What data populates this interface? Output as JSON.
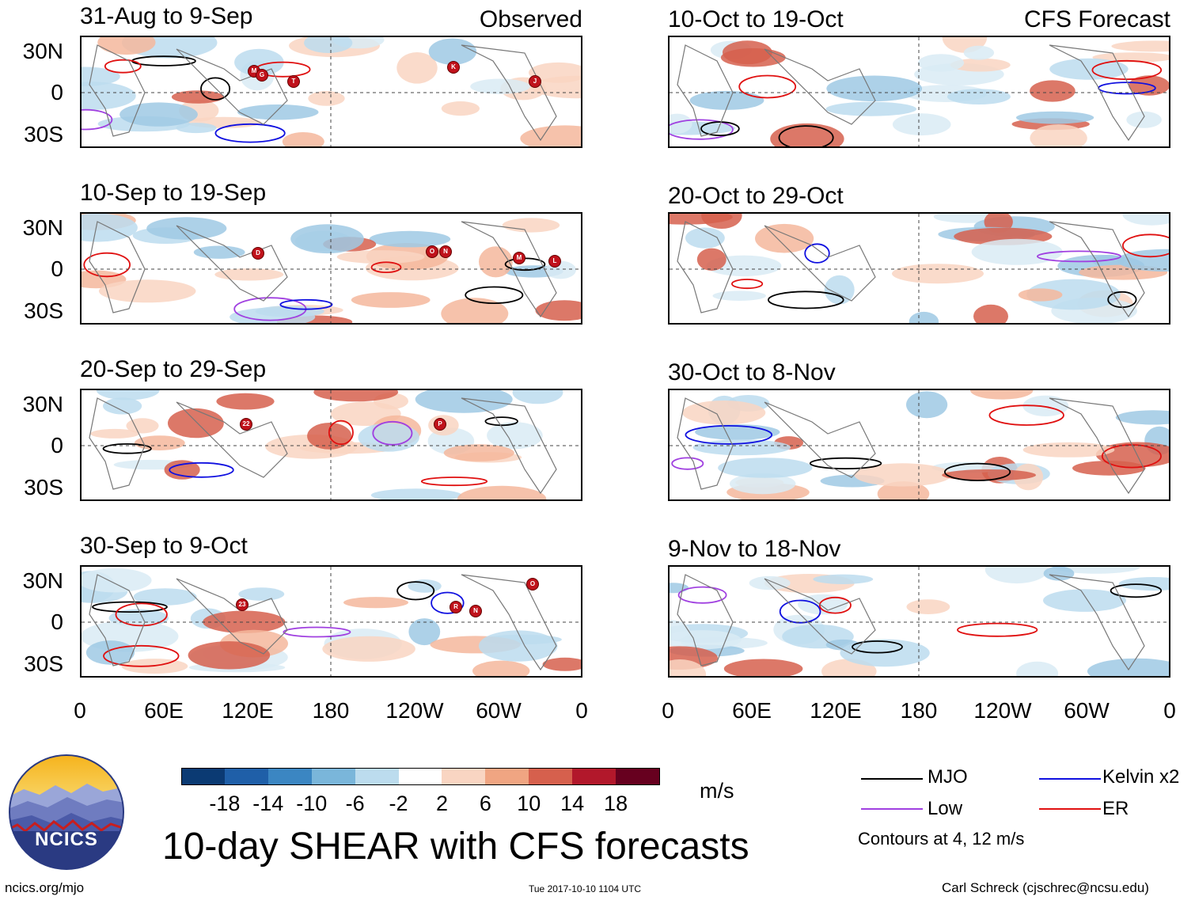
{
  "left_header": "Observed",
  "right_header": "CFS Forecast",
  "observed_panels": [
    {
      "label": "31-Aug to 9-Sep",
      "storms": [
        "M",
        "G",
        "T",
        "K",
        "J"
      ]
    },
    {
      "label": "10-Sep to 19-Sep",
      "storms": [
        "D",
        "O",
        "N",
        "M",
        "L"
      ]
    },
    {
      "label": "20-Sep to 29-Sep",
      "storms": [
        "22",
        "P"
      ]
    },
    {
      "label": "30-Sep to 9-Oct",
      "storms": [
        "23",
        "R",
        "N",
        "O"
      ]
    }
  ],
  "forecast_panels": [
    {
      "label": "10-Oct to 19-Oct"
    },
    {
      "label": "20-Oct to 29-Oct"
    },
    {
      "label": "30-Oct to 8-Nov"
    },
    {
      "label": "9-Nov to 18-Nov"
    }
  ],
  "lat_labels": [
    "30N",
    "0",
    "30S"
  ],
  "lon_labels": [
    "0",
    "60E",
    "120E",
    "180",
    "120W",
    "60W",
    "0"
  ],
  "colorbar": {
    "colors": [
      "#0b3a73",
      "#1f5fa8",
      "#3b86c2",
      "#7ab6da",
      "#bcdcee",
      "#ffffff",
      "#f9d5c2",
      "#f0a582",
      "#d6604d",
      "#b2182b",
      "#67001f"
    ],
    "labels": [
      "-18",
      "-14",
      "-10",
      "-6",
      "-2",
      "2",
      "6",
      "10",
      "14",
      "18"
    ],
    "unit": "m/s"
  },
  "legend": {
    "mjo": {
      "label": "MJO",
      "color": "#000000"
    },
    "kelvin": {
      "label": "Kelvin x2",
      "color": "#1010e0"
    },
    "low": {
      "label": "Low",
      "color": "#a040e0"
    },
    "er": {
      "label": "ER",
      "color": "#e01010"
    },
    "note": "Contours at 4, 12 m/s"
  },
  "title": "10-day SHEAR with CFS forecasts",
  "logo_text": "NCICS",
  "footer": {
    "left": "ncics.org/mjo",
    "center": "Tue 2017-10-10 1104 UTC",
    "right": "Carl Schreck (cjschrec@ncsu.edu)"
  }
}
